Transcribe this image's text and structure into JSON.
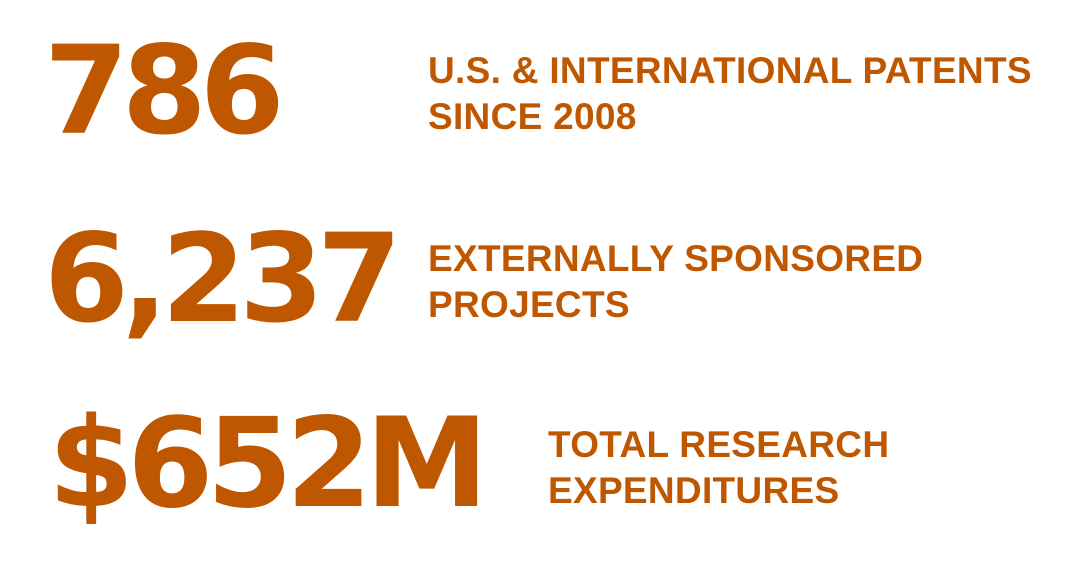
{
  "accent_color": "#bf5700",
  "stats": [
    {
      "value": "786",
      "label_line1": "U.S. & INTERNATIONAL PATENTS",
      "label_line2": "SINCE 2008"
    },
    {
      "value": "6,237",
      "label_line1": "EXTERNALLY SPONSORED",
      "label_line2": "PROJECTS"
    },
    {
      "value": "$652M",
      "label_line1": "TOTAL RESEARCH",
      "label_line2": "EXPENDITURES"
    }
  ]
}
